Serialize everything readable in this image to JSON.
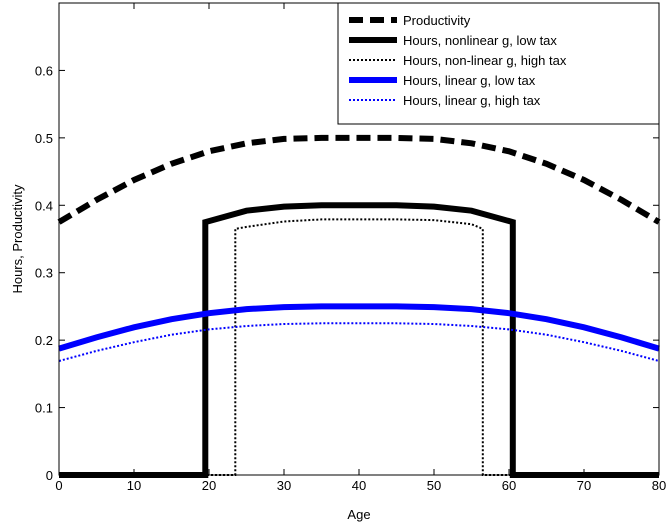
{
  "chart_data": {
    "type": "line",
    "title": "",
    "xlabel": "Age",
    "ylabel": "Hours, Productivity",
    "xlim": [
      0,
      80
    ],
    "ylim": [
      0,
      0.7
    ],
    "xticks": [
      0,
      10,
      20,
      30,
      40,
      50,
      60,
      70,
      80
    ],
    "yticks": [
      0,
      0.1,
      0.2,
      0.3,
      0.4,
      0.5,
      0.6
    ],
    "ytick_labels": [
      "0",
      "0.1",
      "0.2",
      "0.3",
      "0.4",
      "0.5",
      "0.6"
    ],
    "grid": false,
    "legend_position": "top-right",
    "series": [
      {
        "name": "Productivity",
        "color": "#000000",
        "style": "dashed-thick",
        "points": [
          [
            0,
            0.375
          ],
          [
            5,
            0.408
          ],
          [
            10,
            0.4375
          ],
          [
            15,
            0.4615
          ],
          [
            20,
            0.48
          ],
          [
            25,
            0.492
          ],
          [
            30,
            0.4985
          ],
          [
            35,
            0.5
          ],
          [
            40,
            0.5
          ],
          [
            45,
            0.5
          ],
          [
            50,
            0.4985
          ],
          [
            55,
            0.492
          ],
          [
            60,
            0.48
          ],
          [
            65,
            0.4615
          ],
          [
            70,
            0.4375
          ],
          [
            75,
            0.408
          ],
          [
            80,
            0.375
          ]
        ]
      },
      {
        "name": "Hours, nonlinear g, low tax",
        "color": "#000000",
        "style": "solid-thick",
        "points": [
          [
            0,
            0
          ],
          [
            19.5,
            0
          ],
          [
            19.5,
            0.375
          ],
          [
            25,
            0.392
          ],
          [
            30,
            0.398
          ],
          [
            35,
            0.4
          ],
          [
            40,
            0.4
          ],
          [
            45,
            0.4
          ],
          [
            50,
            0.398
          ],
          [
            55,
            0.392
          ],
          [
            60.5,
            0.375
          ],
          [
            60.5,
            0
          ],
          [
            80,
            0
          ]
        ]
      },
      {
        "name": "Hours, non-linear g, high tax",
        "color": "#000000",
        "style": "dotted",
        "points": [
          [
            0,
            0
          ],
          [
            23.5,
            0
          ],
          [
            23.5,
            0.365
          ],
          [
            25,
            0.368
          ],
          [
            30,
            0.376
          ],
          [
            35,
            0.379
          ],
          [
            40,
            0.379
          ],
          [
            45,
            0.379
          ],
          [
            50,
            0.378
          ],
          [
            55,
            0.372
          ],
          [
            56.5,
            0.365
          ],
          [
            56.5,
            0
          ],
          [
            80,
            0
          ]
        ]
      },
      {
        "name": "Hours, linear g, low tax",
        "color": "#0000ff",
        "style": "solid-thick",
        "points": [
          [
            0,
            0.1875
          ],
          [
            5,
            0.204
          ],
          [
            10,
            0.219
          ],
          [
            15,
            0.231
          ],
          [
            20,
            0.24
          ],
          [
            25,
            0.246
          ],
          [
            30,
            0.249
          ],
          [
            35,
            0.25
          ],
          [
            40,
            0.25
          ],
          [
            45,
            0.25
          ],
          [
            50,
            0.249
          ],
          [
            55,
            0.246
          ],
          [
            60,
            0.24
          ],
          [
            65,
            0.231
          ],
          [
            70,
            0.219
          ],
          [
            75,
            0.204
          ],
          [
            80,
            0.1875
          ]
        ]
      },
      {
        "name": "Hours, linear g, high tax",
        "color": "#0000ff",
        "style": "dotted",
        "points": [
          [
            0,
            0.169
          ],
          [
            5,
            0.184
          ],
          [
            10,
            0.197
          ],
          [
            15,
            0.208
          ],
          [
            20,
            0.216
          ],
          [
            25,
            0.221
          ],
          [
            30,
            0.224
          ],
          [
            35,
            0.225
          ],
          [
            40,
            0.225
          ],
          [
            45,
            0.225
          ],
          [
            50,
            0.224
          ],
          [
            55,
            0.221
          ],
          [
            60,
            0.216
          ],
          [
            65,
            0.208
          ],
          [
            70,
            0.197
          ],
          [
            75,
            0.184
          ],
          [
            80,
            0.169
          ]
        ]
      }
    ]
  }
}
